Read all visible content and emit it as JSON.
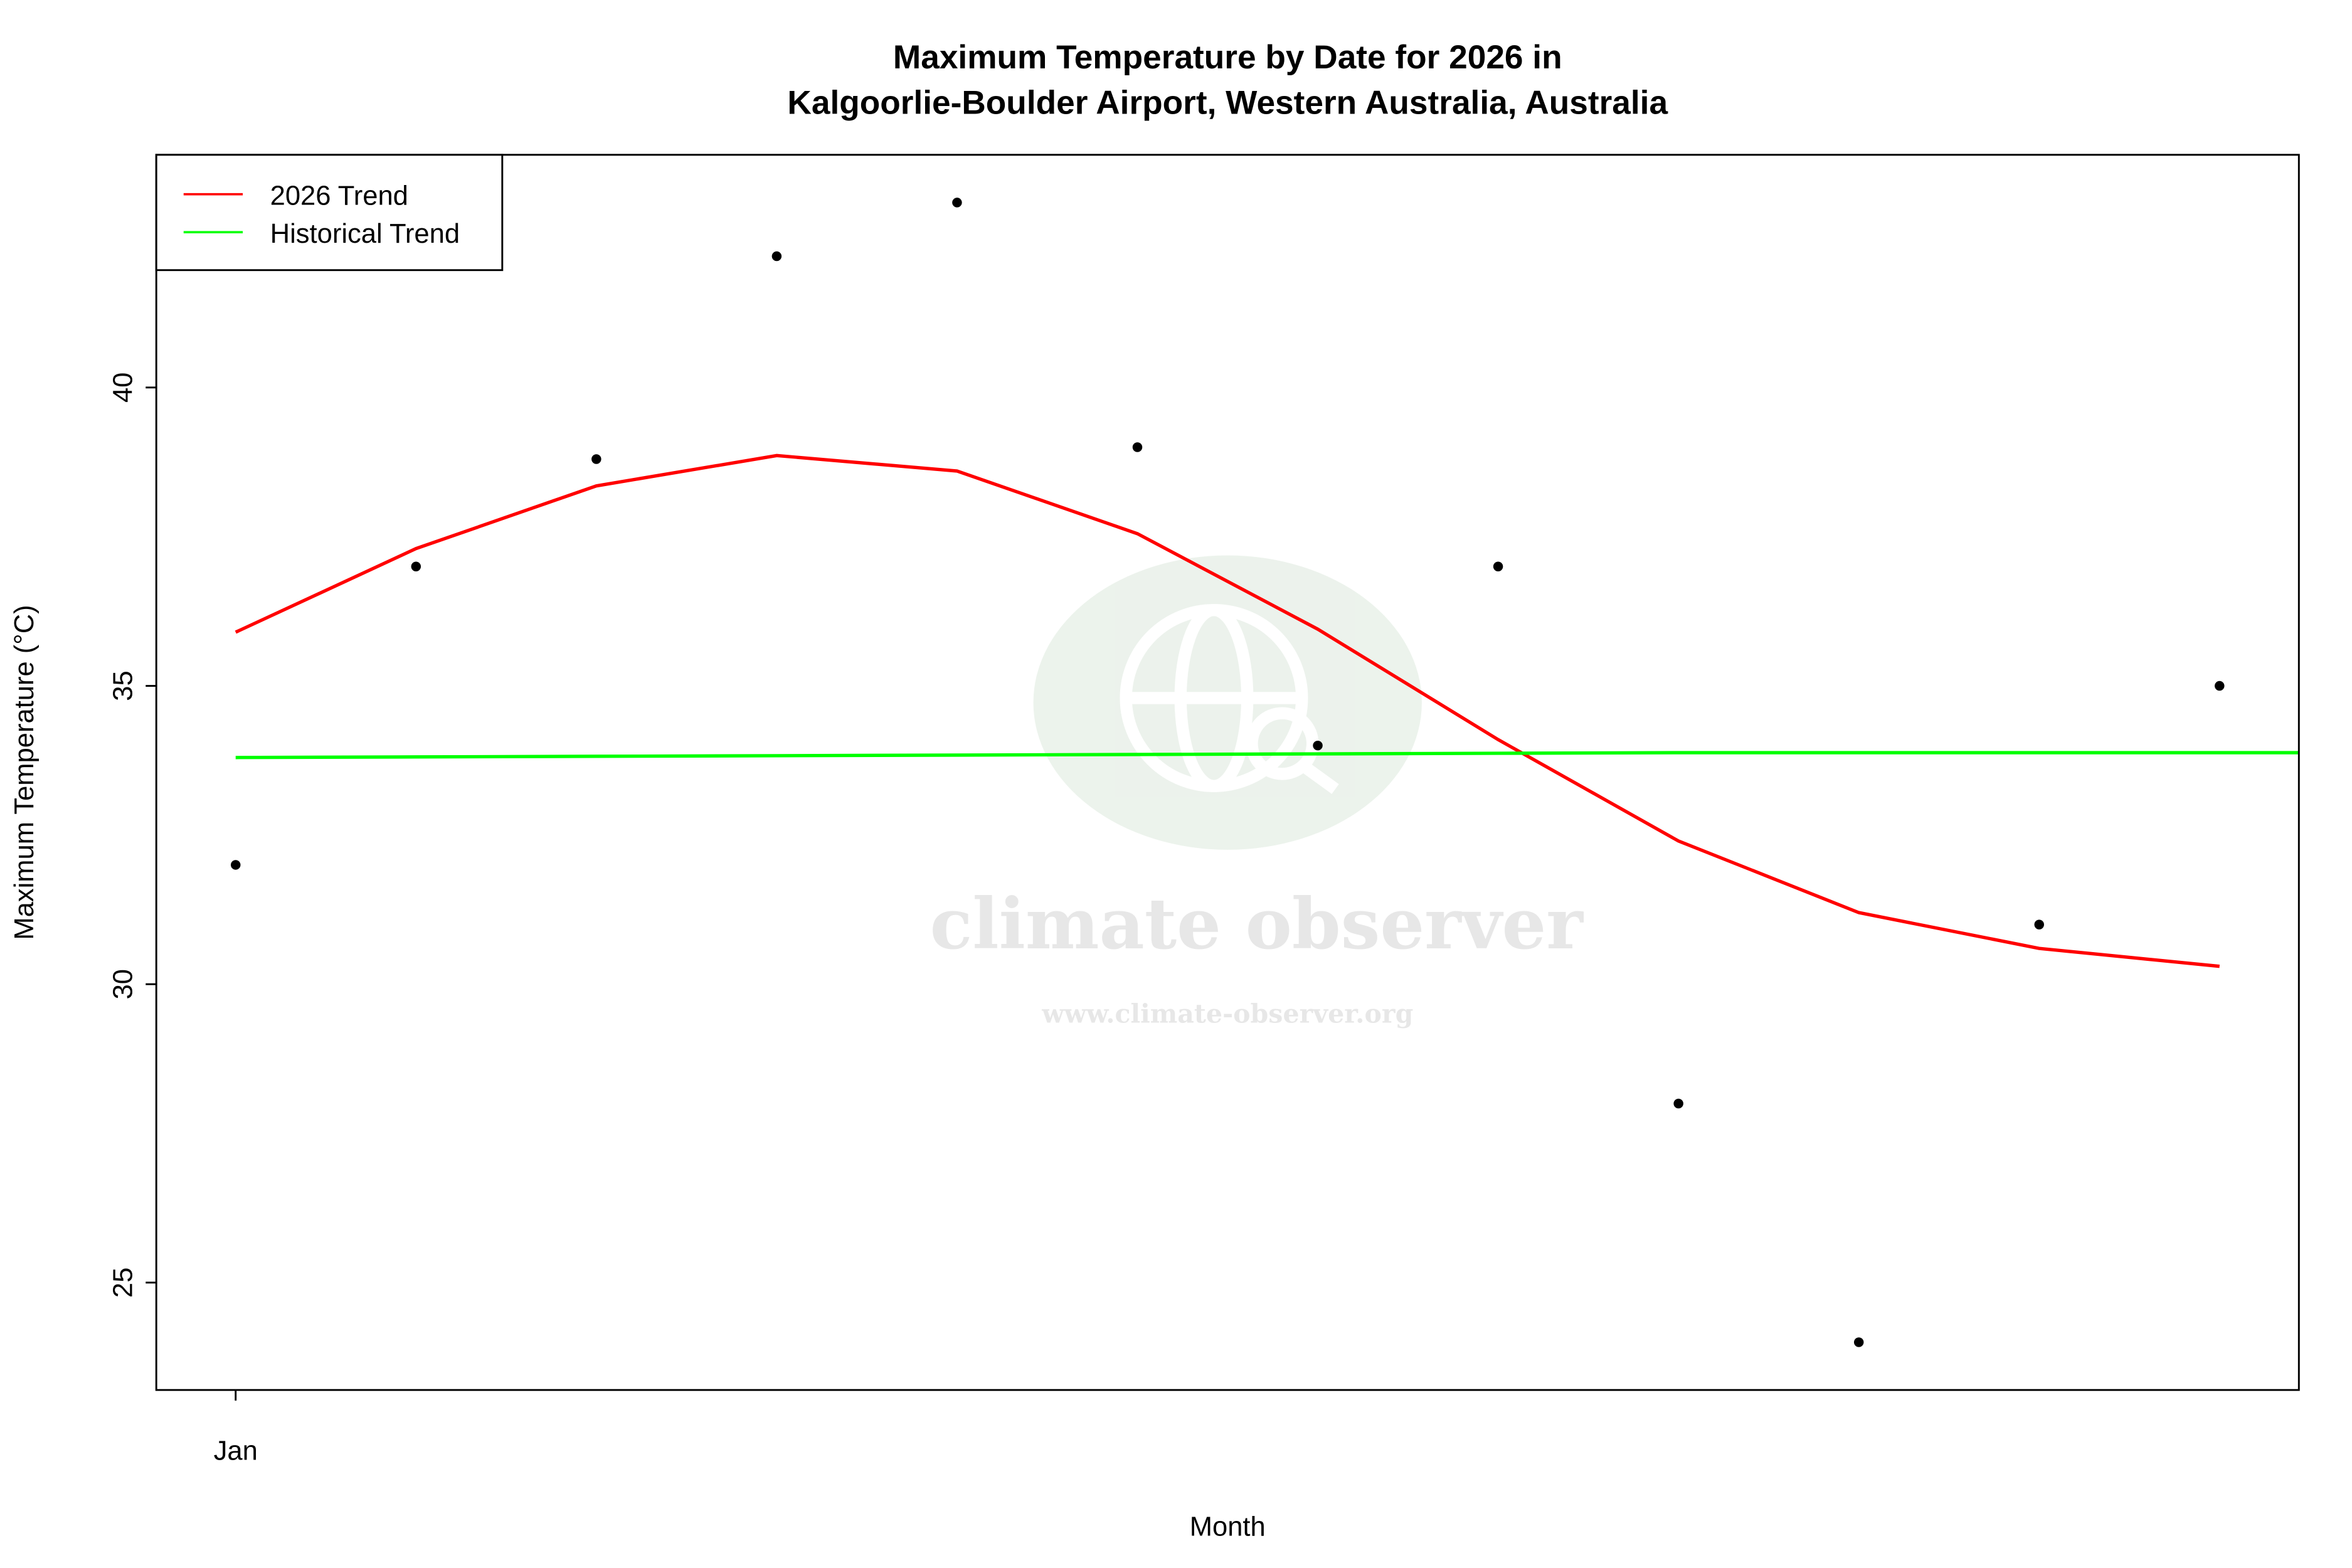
{
  "chart_data": {
    "type": "line",
    "title": [
      "Maximum Temperature by Date for 2026 in",
      "Kalgoorlie-Boulder Airport, Western Australia, Australia"
    ],
    "xlabel": "Month",
    "ylabel": "Maximum Temperature (°C)",
    "x_tick_labels": [
      {
        "x": 1,
        "label": "Jan"
      }
    ],
    "y_ticks": [
      25,
      30,
      35,
      40
    ],
    "xlim": [
      0.56,
      12.44
    ],
    "ylim": [
      23.2,
      43.9
    ],
    "grid": false,
    "legend": {
      "position": "top-left",
      "entries": [
        {
          "label": "2026 Trend",
          "color": "#ff0000"
        },
        {
          "label": "Historical Trend",
          "color": "#00ff00"
        }
      ]
    },
    "points": {
      "x": [
        1,
        2,
        3,
        4,
        5,
        6,
        7,
        8,
        9,
        10,
        11,
        12
      ],
      "y": [
        32.0,
        37.0,
        38.8,
        42.2,
        43.1,
        39.0,
        34.0,
        37.0,
        28.0,
        24.0,
        31.0,
        35.0
      ],
      "color": "#000000"
    },
    "series": [
      {
        "name": "2026 Trend",
        "color": "#ff0000",
        "x": [
          1,
          2,
          3,
          4,
          5,
          6,
          7,
          8,
          9,
          10,
          11,
          12
        ],
        "y": [
          35.9,
          37.3,
          38.35,
          38.86,
          38.6,
          37.55,
          35.95,
          34.1,
          32.4,
          31.2,
          30.6,
          30.3
        ]
      },
      {
        "name": "Historical Trend",
        "color": "#00ff00",
        "x": [
          1,
          2,
          3,
          4,
          5,
          6,
          7,
          8,
          9,
          10,
          11,
          12,
          13
        ],
        "y": [
          33.8,
          33.81,
          33.82,
          33.83,
          33.84,
          33.85,
          33.86,
          33.87,
          33.88,
          33.88,
          33.88,
          33.88,
          33.88
        ]
      }
    ]
  },
  "watermark": {
    "name": "climate observer",
    "url": "www.climate-observer.org"
  }
}
